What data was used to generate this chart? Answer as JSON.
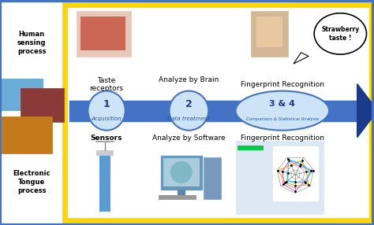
{
  "bg_color": "#ffffff",
  "outer_border_color": "#4472c4",
  "inner_border_color": "#ffd700",
  "arrow_color": "#4472c4",
  "arrow_dark_color": "#1a3a8c",
  "left_labels": [
    "Human\nSensing\nProcess",
    "Electronic\nTongue\nProcess"
  ],
  "top_labels": [
    "Taste\nreceptors",
    "Analyze by Brain",
    "Fingerprint Recognition"
  ],
  "bottom_labels": [
    "Sensors",
    "Analyze by Software",
    "Fingerprint Recognition"
  ],
  "step_numbers": [
    "1",
    "2",
    "3 & 4"
  ],
  "step_sublabels": [
    "Acquisition",
    "Data treatment",
    "Comparison & Statistical Analysis"
  ],
  "speech_bubble_text": "Strawberry\ntaste !",
  "ellipse_fill": "#cce4f5",
  "ellipse_border": "#4472c4",
  "step_number_color": "#1a3a8c",
  "step_sublabel_color": "#2255aa",
  "figwidth": 4.74,
  "figheight": 2.86,
  "dpi": 100
}
